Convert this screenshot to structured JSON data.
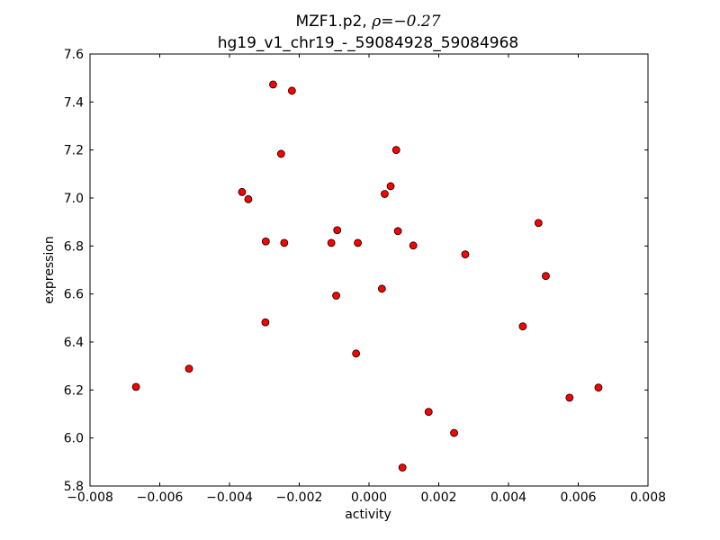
{
  "chart_data": {
    "type": "scatter",
    "title_line1_prefix": "MZF1.p2, ",
    "title_rho_symbol": "ρ",
    "title_rho_value": "=−0.27",
    "title_line2": "hg19_v1_chr19_-_59084928_59084968",
    "xlabel": "activity",
    "ylabel": "expression",
    "xlim": [
      -0.008,
      0.008
    ],
    "ylim": [
      5.8,
      7.6
    ],
    "grid": false,
    "marker_color": "#ff0000",
    "marker_edge_color": "#000000",
    "x_ticks": [
      -0.008,
      -0.006,
      -0.004,
      -0.002,
      0.0,
      0.002,
      0.004,
      0.006,
      0.008
    ],
    "x_tick_labels": [
      "−0.008",
      "−0.006",
      "−0.004",
      "−0.002",
      "0.000",
      "0.002",
      "0.004",
      "0.006",
      "0.008"
    ],
    "y_ticks": [
      5.8,
      6.0,
      6.2,
      6.4,
      6.6,
      6.8,
      7.0,
      7.2,
      7.4,
      7.6
    ],
    "y_tick_labels": [
      "5.8",
      "6.0",
      "6.2",
      "6.4",
      "6.6",
      "6.8",
      "7.0",
      "7.2",
      "7.4",
      "7.6"
    ],
    "points": [
      {
        "x": -0.00668,
        "y": 6.213
      },
      {
        "x": -0.00516,
        "y": 6.289
      },
      {
        "x": -0.00364,
        "y": 7.025
      },
      {
        "x": -0.00346,
        "y": 6.995
      },
      {
        "x": -0.00296,
        "y": 6.819
      },
      {
        "x": -0.00297,
        "y": 6.482
      },
      {
        "x": -0.00275,
        "y": 7.473
      },
      {
        "x": -0.00252,
        "y": 7.184
      },
      {
        "x": -0.00243,
        "y": 6.813
      },
      {
        "x": -0.00221,
        "y": 7.447
      },
      {
        "x": -0.00108,
        "y": 6.813
      },
      {
        "x": -0.00091,
        "y": 6.866
      },
      {
        "x": -0.00094,
        "y": 6.593
      },
      {
        "x": -0.00037,
        "y": 6.352
      },
      {
        "x": -0.00032,
        "y": 6.813
      },
      {
        "x": 0.00037,
        "y": 6.622
      },
      {
        "x": 0.00045,
        "y": 7.017
      },
      {
        "x": 0.00062,
        "y": 7.049
      },
      {
        "x": 0.00078,
        "y": 7.2
      },
      {
        "x": 0.00083,
        "y": 6.862
      },
      {
        "x": 0.00096,
        "y": 5.877
      },
      {
        "x": 0.00127,
        "y": 6.802
      },
      {
        "x": 0.00171,
        "y": 6.109
      },
      {
        "x": 0.00244,
        "y": 6.021
      },
      {
        "x": 0.00276,
        "y": 6.765
      },
      {
        "x": 0.00441,
        "y": 6.465
      },
      {
        "x": 0.00486,
        "y": 6.896
      },
      {
        "x": 0.00507,
        "y": 6.675
      },
      {
        "x": 0.00575,
        "y": 6.168
      },
      {
        "x": 0.00658,
        "y": 6.21
      }
    ]
  }
}
